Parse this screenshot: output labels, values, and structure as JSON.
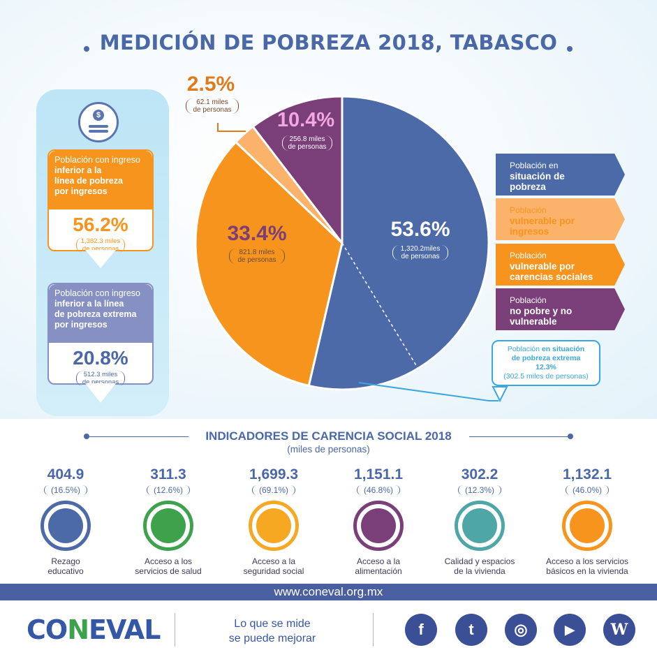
{
  "header": {
    "title": "MEDICIÓN DE POBREZA 2018, TABASCO"
  },
  "left_panel": {
    "card1": {
      "line1": "Población con ingreso",
      "line2": "inferior a la",
      "line3": "línea de pobreza",
      "line4": "por ingresos",
      "pct": "56.2%",
      "sub1": "1,382.3 miles",
      "sub2": "de personas"
    },
    "card2": {
      "line1": "Población con ingreso",
      "line2": "inferior a la línea",
      "line3": "de pobreza extrema",
      "line4": "por ingresos",
      "pct": "20.8%",
      "sub1": "512.3 miles",
      "sub2": "de personas"
    }
  },
  "chart_data": {
    "type": "pie",
    "slices": [
      {
        "name": "Población en situación de pobreza",
        "value": 53.6,
        "label": "53.6%",
        "sub1": "1,320.2miles",
        "sub2": "de personas",
        "color": "#4d6aa8"
      },
      {
        "name": "Población vulnerable por carencias sociales",
        "value": 33.4,
        "label": "33.4%",
        "sub1": "821.8 miles",
        "sub2": "de personas",
        "color": "#f7941d"
      },
      {
        "name": "Población vulnerable por ingresos",
        "value": 2.5,
        "label": "2.5%",
        "sub1": "62.1 miles",
        "sub2": "de personas",
        "color": "#fbb36b"
      },
      {
        "name": "Población no pobre y no vulnerable",
        "value": 10.4,
        "label": "10.4%",
        "sub1": "256.8 miles",
        "sub2": "de personas",
        "color": "#7a3e79"
      }
    ],
    "extreme": {
      "value": 12.3,
      "line1": "Población",
      "line1b": "en situación",
      "line2": "de pobreza extrema",
      "pct": "12.3%",
      "sub": "(302.5 miles de personas)"
    }
  },
  "legend": [
    {
      "l1": "Población en",
      "l2": "situación de",
      "l3": "pobreza",
      "bg": "#4d6aa8",
      "fg": "#ffffff"
    },
    {
      "l1": "Población",
      "l2": "vulnerable por",
      "l3": "ingresos",
      "bg": "#fbb36b",
      "fg": "#f7941d"
    },
    {
      "l1": "Población",
      "l2": "vulnerable por",
      "l3": "carencias sociales",
      "bg": "#f7941d",
      "fg": "#ffffff"
    },
    {
      "l1": "Población",
      "l2": "no pobre y no",
      "l3": "vulnerable",
      "bg": "#7a3e79",
      "fg": "#ffffff"
    }
  ],
  "indicators": {
    "title": "INDICADORES DE CARENCIA SOCIAL 2018",
    "subtitle": "(miles de personas)",
    "items": [
      {
        "value": "404.9",
        "pct": "(16.5%)",
        "name1": "Rezago",
        "name2": "educativo",
        "color": "#4d6aa8"
      },
      {
        "value": "311.3",
        "pct": "(12.6%)",
        "name1": "Acceso a los",
        "name2": "servicios de salud",
        "color": "#3ea24d"
      },
      {
        "value": "1,699.3",
        "pct": "(69.1%)",
        "name1": "Acceso a la",
        "name2": "seguridad social",
        "color": "#f7a823"
      },
      {
        "value": "1,151.1",
        "pct": "(46.8%)",
        "name1": "Acceso a la",
        "name2": "alimentación",
        "color": "#7a3e79"
      },
      {
        "value": "302.2",
        "pct": "(12.3%)",
        "name1": "Calidad y espacios",
        "name2": "de la vivienda",
        "color": "#4ea6a6"
      },
      {
        "value": "1,132.1",
        "pct": "(46.0%)",
        "name1": "Acceso a los servicios",
        "name2": "básicos en la vivienda",
        "color": "#f7941d"
      }
    ]
  },
  "footer": {
    "url": "www.coneval.org.mx",
    "logo_a": "CO",
    "logo_n": "N",
    "logo_b": "EVAL",
    "slogan1": "Lo que se mide",
    "slogan2": "se puede mejorar",
    "social": [
      {
        "icon": "facebook-icon",
        "glyph": "f"
      },
      {
        "icon": "twitter-icon",
        "glyph": "t"
      },
      {
        "icon": "instagram-icon",
        "glyph": "◎"
      },
      {
        "icon": "youtube-icon",
        "glyph": "▶"
      },
      {
        "icon": "wordpress-icon",
        "glyph": "W"
      }
    ]
  }
}
